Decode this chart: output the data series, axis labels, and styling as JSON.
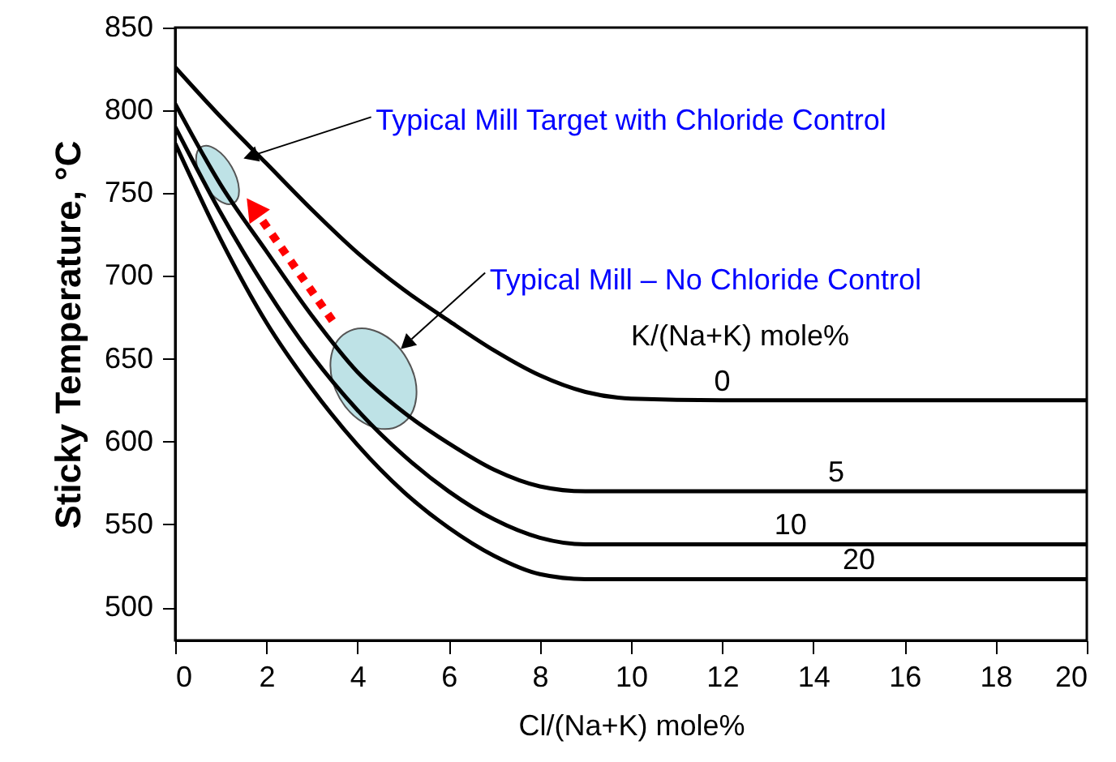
{
  "chart_data": {
    "type": "line",
    "xlabel": "Cl/(Na+K) mole%",
    "ylabel": "Sticky Temperature, °C",
    "legend_title": "K/(Na+K) mole%",
    "x": [
      0,
      1,
      2,
      3,
      4,
      5,
      6,
      7,
      8,
      9,
      10,
      12,
      14,
      16,
      18,
      20
    ],
    "series": [
      {
        "name": "0",
        "color": "#000000",
        "values": [
          826,
          796,
          768,
          740,
          714,
          692,
          673,
          655,
          640,
          630,
          626,
          625,
          625,
          625,
          625,
          625
        ]
      },
      {
        "name": "5",
        "color": "#000000",
        "values": [
          804,
          755,
          715,
          676,
          642,
          618,
          599,
          583,
          573,
          570,
          570,
          570,
          570,
          570,
          570,
          570
        ]
      },
      {
        "name": "10",
        "color": "#000000",
        "values": [
          790,
          738,
          692,
          652,
          619,
          592,
          570,
          553,
          542,
          538,
          538,
          538,
          538,
          538,
          538,
          538
        ]
      },
      {
        "name": "20",
        "color": "#000000",
        "values": [
          780,
          722,
          672,
          632,
          598,
          570,
          548,
          531,
          520,
          517,
          517,
          517,
          517,
          517,
          517,
          517
        ]
      }
    ],
    "annotations": [
      "Typical Mill Target with Chloride Control",
      "Typical Mill – No Chloride Control"
    ],
    "xlim": [
      0,
      20
    ],
    "xticks": [
      0,
      2,
      4,
      6,
      8,
      10,
      12,
      14,
      16,
      18,
      20
    ],
    "ylim": [
      480,
      850
    ],
    "yticks": [
      500,
      550,
      600,
      650,
      700,
      750,
      800,
      850
    ],
    "grid": false,
    "marker": "none",
    "line_style": "solid"
  }
}
